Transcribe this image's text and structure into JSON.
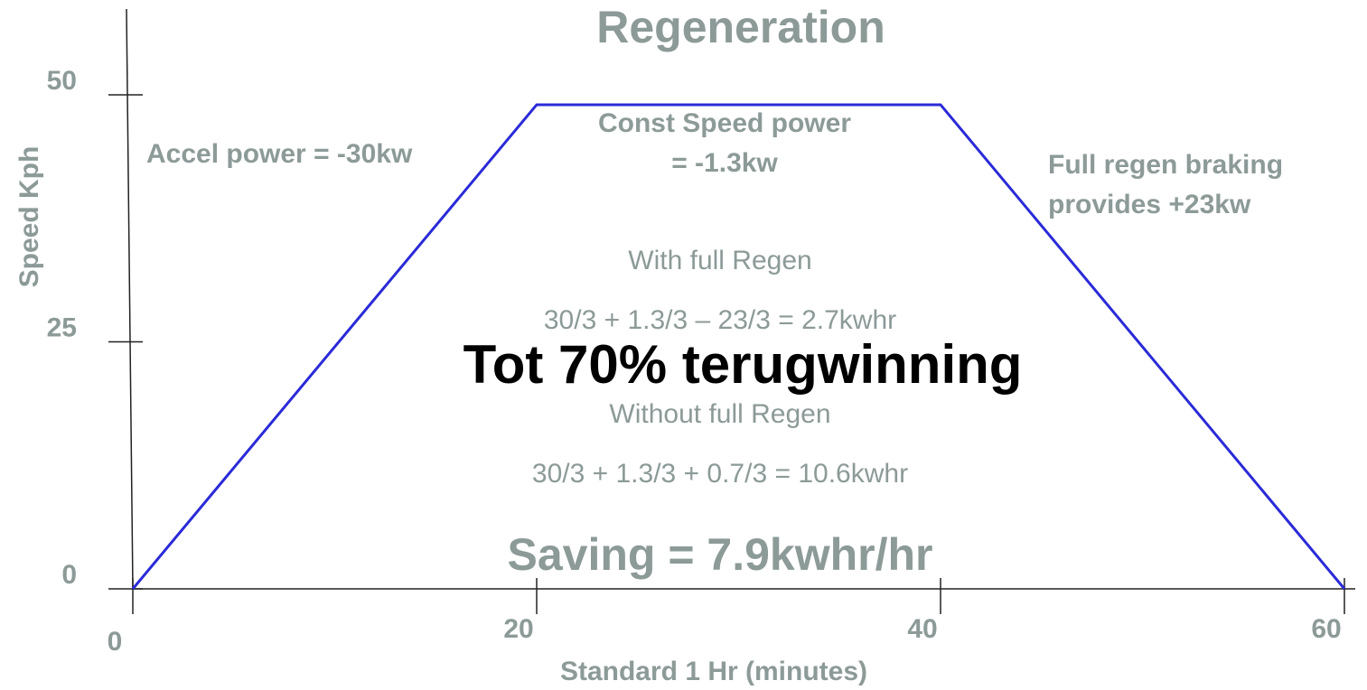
{
  "chart_data": {
    "type": "line",
    "title": "Regeneration",
    "xlabel": "Standard 1 Hr (minutes)",
    "ylabel": "Speed Kph",
    "x": [
      0,
      20,
      40,
      60
    ],
    "series": [
      {
        "name": "Speed",
        "color": "#2a2ad8",
        "values": [
          0,
          49,
          49,
          0
        ]
      }
    ],
    "xlim": [
      0,
      60
    ],
    "ylim": [
      0,
      50
    ],
    "xticks": [
      0,
      20,
      40,
      60
    ],
    "yticks": [
      0,
      25,
      50
    ],
    "annotations": [
      "Accel power = -30kw",
      "Const Speed power",
      "= -1.3kw",
      "Full regen braking",
      "provides +23kw",
      "With full Regen",
      "30/3 + 1.3/3 – 23/3 = 2.7kwhr",
      "Tot 70% terugwinning",
      "Without full Regen",
      "30/3 + 1.3/3 + 0.7/3 = 10.6kwhr",
      "Saving = 7.9kwhr/hr"
    ]
  }
}
